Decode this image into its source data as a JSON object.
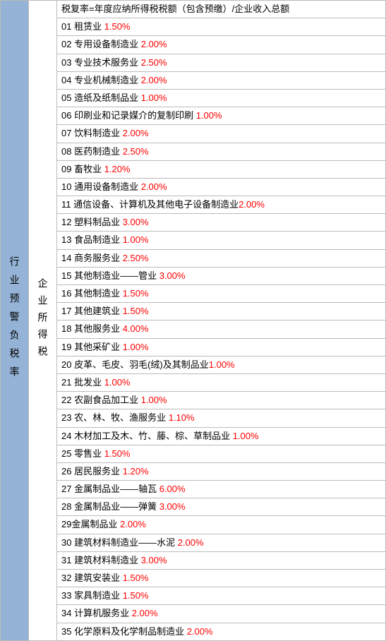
{
  "left_header": "行业预警负税率",
  "mid_header": "企业所得税",
  "formula": "税复率=年度应纳所得税税额（包含预缴）/企业收入总额",
  "rows": [
    {
      "num": "01",
      "text": " 租赁业 ",
      "rate": "1.50%"
    },
    {
      "num": "02",
      "text": " 专用设备制造业 ",
      "rate": "2.00%"
    },
    {
      "num": "03",
      "text": " 专业技术服务业 ",
      "rate": "2.50%"
    },
    {
      "num": "04",
      "text": " 专业机械制造业 ",
      "rate": "2.00%"
    },
    {
      "num": "05",
      "text": " 造纸及纸制品业 ",
      "rate": "1.00%"
    },
    {
      "num": "06",
      "text": " 印刷业和记录媒介的复制印刷 ",
      "rate": "1.00%"
    },
    {
      "num": "07",
      "text": " 饮料制造业 ",
      "rate": "2.00%"
    },
    {
      "num": "08",
      "text": " 医药制造业 ",
      "rate": "2.50%"
    },
    {
      "num": "09",
      "text": " 畜牧业 ",
      "rate": "1.20%"
    },
    {
      "num": "10",
      "text": " 通用设备制造业 ",
      "rate": "2.00%"
    },
    {
      "num": "11",
      "text": " 通信设备、计算机及其他电子设备制造业",
      "rate": "2.00%"
    },
    {
      "num": "12",
      "text": " 塑料制品业 ",
      "rate": "3.00%"
    },
    {
      "num": "13",
      "text": " 食品制造业 ",
      "rate": "1.00%"
    },
    {
      "num": "14",
      "text": " 商务服务业 ",
      "rate": "2.50%"
    },
    {
      "num": "15",
      "text": " 其他制造业——管业 ",
      "rate": "3.00%"
    },
    {
      "num": "16",
      "text": " 其他制造业 ",
      "rate": "1.50%"
    },
    {
      "num": "17",
      "text": " 其他建筑业 ",
      "rate": "1.50%"
    },
    {
      "num": "18",
      "text": " 其他服务业 ",
      "rate": "4.00%"
    },
    {
      "num": "19",
      "text": " 其他采矿业 ",
      "rate": "1.00%"
    },
    {
      "num": "20",
      "text": " 皮革、毛皮、羽毛(绒)及其制品业",
      "rate": "1.00%"
    },
    {
      "num": "21",
      "text": " 批发业 ",
      "rate": "1.00%"
    },
    {
      "num": "22",
      "text": " 农副食品加工业 ",
      "rate": "1.00%"
    },
    {
      "num": "23",
      "text": " 农、林、牧、渔服务业 ",
      "rate": "1.10%"
    },
    {
      "num": "24",
      "text": " 木材加工及木、竹、藤、棕、草制品业 ",
      "rate": "1.00%"
    },
    {
      "num": "25",
      "text": " 零售业 ",
      "rate": "1.50%"
    },
    {
      "num": "26",
      "text": " 居民服务业 ",
      "rate": "1.20%"
    },
    {
      "num": "27",
      "text": " 金属制品业——轴瓦 ",
      "rate": "6.00%"
    },
    {
      "num": "28",
      "text": " 金属制品业——弹簧 ",
      "rate": "3.00%"
    },
    {
      "num": "29",
      "text": "金属制品业 ",
      "rate": "2.00%"
    },
    {
      "num": "30",
      "text": " 建筑材料制造业——水泥 ",
      "rate": "2.00%"
    },
    {
      "num": "31",
      "text": " 建筑材料制造业 ",
      "rate": "3.00%"
    },
    {
      "num": "32",
      "text": " 建筑安装业 ",
      "rate": "1.50%"
    },
    {
      "num": "33",
      "text": " 家具制造业 ",
      "rate": "1.50%"
    },
    {
      "num": "34",
      "text": " 计算机服务业 ",
      "rate": "2.00%"
    },
    {
      "num": "35",
      "text": " 化学原料及化学制品制造业 ",
      "rate": "2.00%"
    }
  ]
}
